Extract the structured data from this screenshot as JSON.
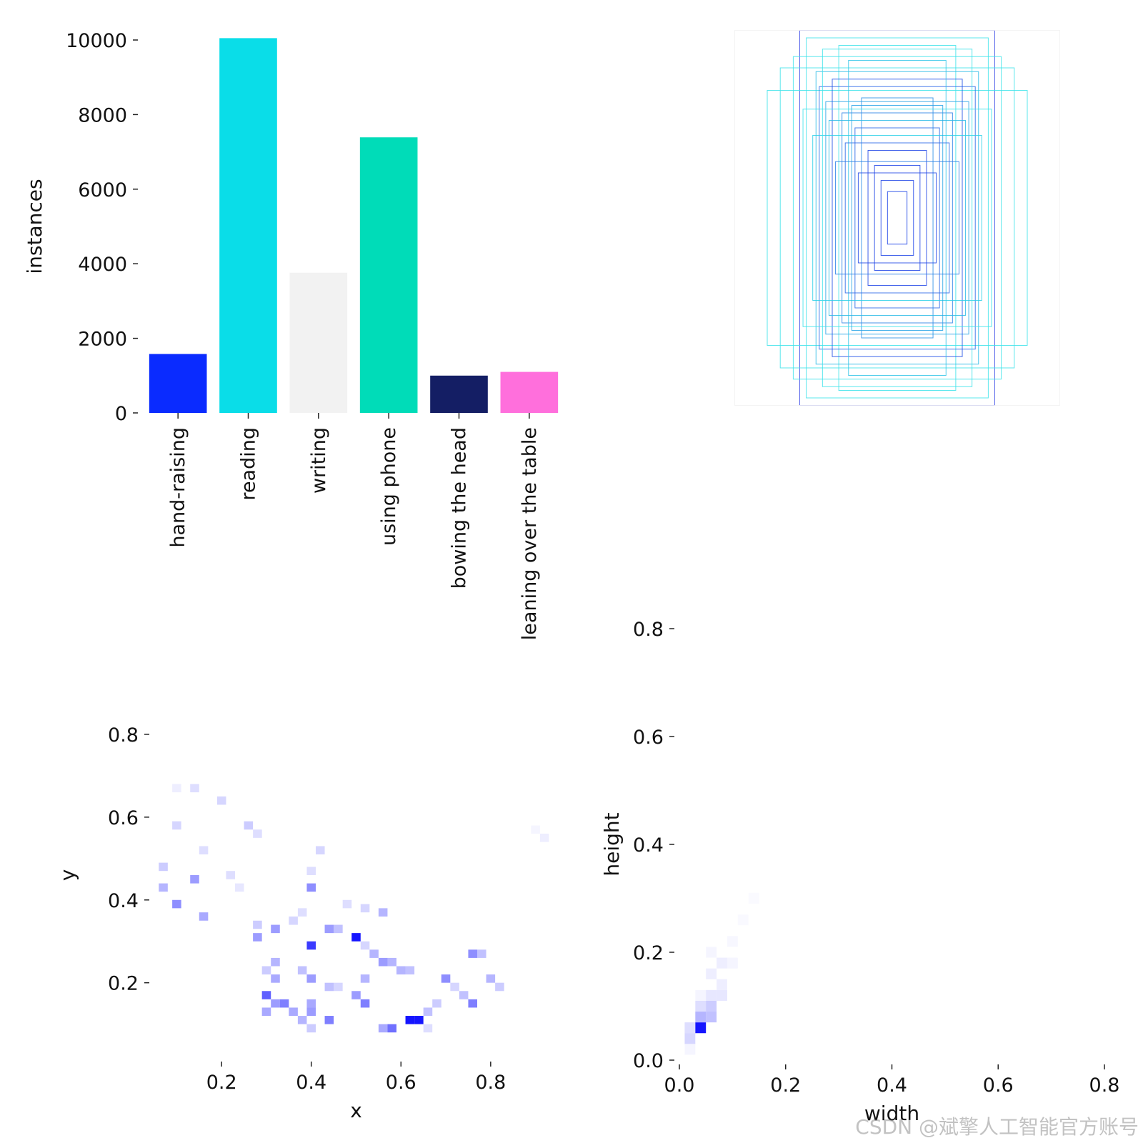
{
  "watermark": "CSDN @斌擎人工智能官方账号",
  "chart_data": [
    {
      "id": "instances",
      "type": "bar",
      "title": "",
      "xlabel": "",
      "ylabel": "instances",
      "ylim": [
        0,
        10000
      ],
      "yticks": [
        "0",
        "2000",
        "4000",
        "6000",
        "8000",
        "10000"
      ],
      "ytick_values": [
        0,
        2000,
        4000,
        6000,
        8000,
        10000
      ],
      "categories": [
        "hand-raising",
        "reading",
        "writing",
        "using phone",
        "bowing the head",
        "leaning over the table"
      ],
      "values": [
        1580,
        10050,
        3760,
        7390,
        1000,
        1100
      ],
      "colors": [
        "#0a2bff",
        "#0adde8",
        "#f2f2f2",
        "#00dcb8",
        "#141e64",
        "#ff6fdc"
      ]
    },
    {
      "id": "boxes",
      "type": "box-overlay",
      "title": "",
      "note": "overlay of normalized label boxes centered at (0.5, 0.5)",
      "boxes": [
        {
          "w": 0.6,
          "h": 1.0,
          "color": "#3f4fe8"
        },
        {
          "w": 0.72,
          "h": 0.8,
          "color": "#3ee3ea"
        },
        {
          "w": 0.56,
          "h": 0.96,
          "color": "#3ee3ea"
        },
        {
          "w": 0.8,
          "h": 0.68,
          "color": "#3ee3ea"
        },
        {
          "w": 0.64,
          "h": 0.86,
          "color": "#3ee3ea"
        },
        {
          "w": 0.36,
          "h": 0.92,
          "color": "#3ee3ea"
        },
        {
          "w": 0.5,
          "h": 0.78,
          "color": "#2bbbe6"
        },
        {
          "w": 0.48,
          "h": 0.7,
          "color": "#2b67e8"
        },
        {
          "w": 0.44,
          "h": 0.62,
          "color": "#2aa5e6"
        },
        {
          "w": 0.4,
          "h": 0.74,
          "color": "#1f4fe6"
        },
        {
          "w": 0.34,
          "h": 0.56,
          "color": "#2a80e6"
        },
        {
          "w": 0.3,
          "h": 0.84,
          "color": "#33c6e8"
        },
        {
          "w": 0.26,
          "h": 0.48,
          "color": "#2a67e8"
        },
        {
          "w": 0.22,
          "h": 0.64,
          "color": "#2a8fe6"
        },
        {
          "w": 0.18,
          "h": 0.36,
          "color": "#1e44e6"
        },
        {
          "w": 0.14,
          "h": 0.28,
          "color": "#1e44e6"
        },
        {
          "w": 0.1,
          "h": 0.2,
          "color": "#1e44e6"
        },
        {
          "w": 0.06,
          "h": 0.14,
          "color": "#1e44e6"
        },
        {
          "w": 0.42,
          "h": 0.52,
          "color": "#2bbbe6"
        },
        {
          "w": 0.52,
          "h": 0.44,
          "color": "#2ad0e8"
        },
        {
          "w": 0.58,
          "h": 0.58,
          "color": "#3ee3ea"
        },
        {
          "w": 0.32,
          "h": 0.4,
          "color": "#2a67e8"
        },
        {
          "w": 0.28,
          "h": 0.6,
          "color": "#2aa5e6"
        },
        {
          "w": 0.46,
          "h": 0.9,
          "color": "#3ee3ea"
        },
        {
          "w": 0.38,
          "h": 0.3,
          "color": "#2a80e6"
        },
        {
          "w": 0.24,
          "h": 0.24,
          "color": "#1e44e6"
        },
        {
          "w": 1.0,
          "h": 1.0,
          "color": "#f2f2f2"
        }
      ]
    },
    {
      "id": "xy",
      "type": "heatmap",
      "title": "",
      "xlabel": "x",
      "ylabel": "y",
      "xlim": [
        0.05,
        0.95
      ],
      "ylim": [
        0.02,
        0.9
      ],
      "xticks": [
        "0.2",
        "0.4",
        "0.6",
        "0.8"
      ],
      "xtick_values": [
        0.2,
        0.4,
        0.6,
        0.8
      ],
      "yticks": [
        "0.2",
        "0.4",
        "0.6",
        "0.8"
      ],
      "ytick_values": [
        0.2,
        0.4,
        0.6,
        0.8
      ],
      "bin": 0.02,
      "cells": [
        [
          0.1,
          0.67,
          0.15
        ],
        [
          0.14,
          0.67,
          0.25
        ],
        [
          0.1,
          0.58,
          0.3
        ],
        [
          0.2,
          0.64,
          0.3
        ],
        [
          0.16,
          0.52,
          0.25
        ],
        [
          0.07,
          0.48,
          0.35
        ],
        [
          0.07,
          0.43,
          0.45
        ],
        [
          0.14,
          0.45,
          0.55
        ],
        [
          0.1,
          0.39,
          0.6
        ],
        [
          0.16,
          0.36,
          0.5
        ],
        [
          0.22,
          0.46,
          0.25
        ],
        [
          0.26,
          0.58,
          0.35
        ],
        [
          0.28,
          0.56,
          0.25
        ],
        [
          0.42,
          0.52,
          0.3
        ],
        [
          0.4,
          0.47,
          0.25
        ],
        [
          0.4,
          0.43,
          0.6
        ],
        [
          0.36,
          0.35,
          0.3
        ],
        [
          0.28,
          0.34,
          0.35
        ],
        [
          0.32,
          0.33,
          0.55
        ],
        [
          0.28,
          0.31,
          0.55
        ],
        [
          0.4,
          0.29,
          0.85
        ],
        [
          0.44,
          0.33,
          0.55
        ],
        [
          0.46,
          0.33,
          0.4
        ],
        [
          0.5,
          0.31,
          0.95
        ],
        [
          0.48,
          0.39,
          0.25
        ],
        [
          0.52,
          0.38,
          0.3
        ],
        [
          0.56,
          0.37,
          0.45
        ],
        [
          0.32,
          0.25,
          0.45
        ],
        [
          0.3,
          0.23,
          0.35
        ],
        [
          0.32,
          0.21,
          0.5
        ],
        [
          0.38,
          0.23,
          0.4
        ],
        [
          0.4,
          0.21,
          0.55
        ],
        [
          0.3,
          0.17,
          0.75
        ],
        [
          0.32,
          0.15,
          0.55
        ],
        [
          0.3,
          0.13,
          0.5
        ],
        [
          0.34,
          0.15,
          0.65
        ],
        [
          0.36,
          0.13,
          0.5
        ],
        [
          0.38,
          0.11,
          0.45
        ],
        [
          0.4,
          0.13,
          0.55
        ],
        [
          0.4,
          0.15,
          0.5
        ],
        [
          0.4,
          0.09,
          0.35
        ],
        [
          0.44,
          0.11,
          0.65
        ],
        [
          0.44,
          0.19,
          0.4
        ],
        [
          0.46,
          0.19,
          0.3
        ],
        [
          0.5,
          0.17,
          0.55
        ],
        [
          0.52,
          0.21,
          0.45
        ],
        [
          0.52,
          0.15,
          0.65
        ],
        [
          0.54,
          0.27,
          0.45
        ],
        [
          0.52,
          0.29,
          0.3
        ],
        [
          0.56,
          0.25,
          0.55
        ],
        [
          0.58,
          0.25,
          0.45
        ],
        [
          0.6,
          0.23,
          0.45
        ],
        [
          0.62,
          0.23,
          0.4
        ],
        [
          0.58,
          0.09,
          0.7
        ],
        [
          0.56,
          0.09,
          0.5
        ],
        [
          0.62,
          0.11,
          0.95
        ],
        [
          0.64,
          0.11,
          0.95
        ],
        [
          0.66,
          0.13,
          0.4
        ],
        [
          0.66,
          0.09,
          0.25
        ],
        [
          0.68,
          0.15,
          0.35
        ],
        [
          0.7,
          0.21,
          0.6
        ],
        [
          0.72,
          0.19,
          0.3
        ],
        [
          0.74,
          0.17,
          0.4
        ],
        [
          0.76,
          0.15,
          0.65
        ],
        [
          0.78,
          0.27,
          0.4
        ],
        [
          0.76,
          0.27,
          0.6
        ],
        [
          0.8,
          0.21,
          0.45
        ],
        [
          0.82,
          0.19,
          0.35
        ],
        [
          0.92,
          0.55,
          0.15
        ],
        [
          0.9,
          0.57,
          0.1
        ],
        [
          0.38,
          0.37,
          0.25
        ],
        [
          0.24,
          0.43,
          0.2
        ]
      ]
    },
    {
      "id": "wh",
      "type": "heatmap",
      "title": "",
      "xlabel": "width",
      "ylabel": "height",
      "xlim": [
        0.0,
        0.8
      ],
      "ylim": [
        0.0,
        0.8
      ],
      "xticks": [
        "0.0",
        "0.2",
        "0.4",
        "0.6",
        "0.8"
      ],
      "xtick_values": [
        0.0,
        0.2,
        0.4,
        0.6,
        0.8
      ],
      "yticks": [
        "0.0",
        "0.2",
        "0.4",
        "0.6",
        "0.8"
      ],
      "ytick_values": [
        0.0,
        0.2,
        0.4,
        0.6,
        0.8
      ],
      "bin": 0.02,
      "cells": [
        [
          0.04,
          0.06,
          0.95
        ],
        [
          0.02,
          0.04,
          0.3
        ],
        [
          0.02,
          0.06,
          0.25
        ],
        [
          0.04,
          0.08,
          0.45
        ],
        [
          0.06,
          0.08,
          0.4
        ],
        [
          0.06,
          0.1,
          0.35
        ],
        [
          0.04,
          0.1,
          0.25
        ],
        [
          0.06,
          0.12,
          0.2
        ],
        [
          0.08,
          0.12,
          0.2
        ],
        [
          0.08,
          0.14,
          0.15
        ],
        [
          0.06,
          0.16,
          0.15
        ],
        [
          0.08,
          0.18,
          0.15
        ],
        [
          0.1,
          0.18,
          0.1
        ],
        [
          0.06,
          0.2,
          0.1
        ],
        [
          0.1,
          0.22,
          0.08
        ],
        [
          0.12,
          0.26,
          0.06
        ],
        [
          0.14,
          0.3,
          0.05
        ],
        [
          0.04,
          0.12,
          0.1
        ],
        [
          0.02,
          0.02,
          0.1
        ]
      ]
    }
  ]
}
